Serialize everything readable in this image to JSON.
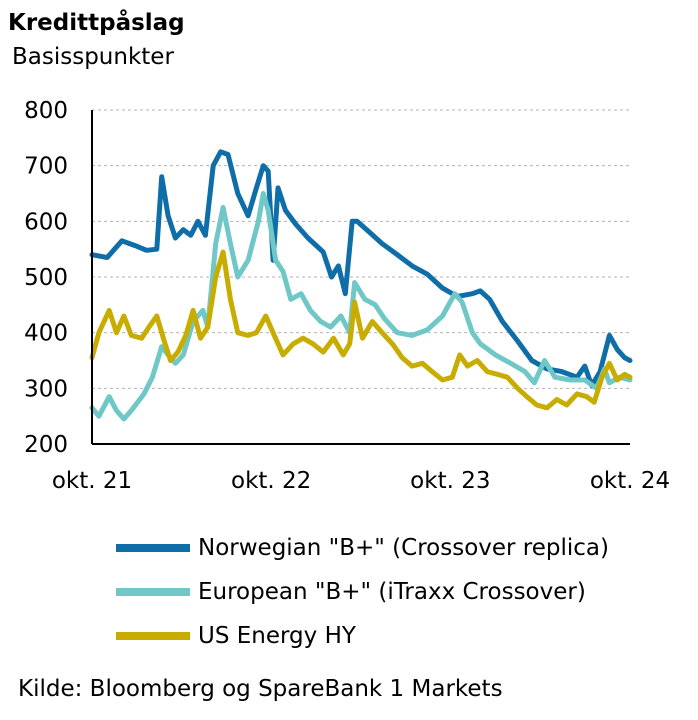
{
  "header": {
    "title": "Kredittpåslag",
    "subtitle": "Basisspunkter"
  },
  "source": "Kilde: Bloomberg og SpareBank 1 Markets",
  "colors": {
    "norwegian": "#0f6ea8",
    "european": "#6fc7c7",
    "us_energy": "#c8ad00",
    "grid": "#b3b3b3",
    "axis": "#000000"
  },
  "chart_data": {
    "type": "line",
    "title": "Kredittpåslag",
    "subtitle": "Basisspunkter",
    "xlabel": "",
    "ylabel": "Basisspunkter",
    "ylim": [
      200,
      800
    ],
    "yticks": [
      "200",
      "300",
      "400",
      "500",
      "600",
      "700",
      "800"
    ],
    "xticks": [
      "okt. 21",
      "okt. 22",
      "okt. 23",
      "okt. 24"
    ],
    "grid": "horizontal dashed",
    "legend_position": "bottom",
    "series": [
      {
        "name": "Norwegian \"B+\" (Crossover replica)",
        "color": "#0f6ea8",
        "points": [
          [
            "2021-10-01",
            540
          ],
          [
            "2021-11-01",
            535
          ],
          [
            "2021-12-01",
            565
          ],
          [
            "2022-01-01",
            555
          ],
          [
            "2022-01-20",
            548
          ],
          [
            "2022-02-10",
            550
          ],
          [
            "2022-02-20",
            680
          ],
          [
            "2022-03-05",
            610
          ],
          [
            "2022-03-20",
            570
          ],
          [
            "2022-04-05",
            585
          ],
          [
            "2022-04-20",
            575
          ],
          [
            "2022-05-05",
            600
          ],
          [
            "2022-05-20",
            575
          ],
          [
            "2022-06-05",
            700
          ],
          [
            "2022-06-20",
            725
          ],
          [
            "2022-07-05",
            720
          ],
          [
            "2022-07-25",
            650
          ],
          [
            "2022-08-15",
            610
          ],
          [
            "2022-09-01",
            660
          ],
          [
            "2022-09-15",
            700
          ],
          [
            "2022-09-25",
            690
          ],
          [
            "2022-10-05",
            530
          ],
          [
            "2022-10-15",
            660
          ],
          [
            "2022-10-30",
            620
          ],
          [
            "2022-11-20",
            595
          ],
          [
            "2022-12-15",
            570
          ],
          [
            "2023-01-15",
            545
          ],
          [
            "2023-02-01",
            500
          ],
          [
            "2023-02-15",
            520
          ],
          [
            "2023-03-01",
            470
          ],
          [
            "2023-03-15",
            600
          ],
          [
            "2023-03-25",
            600
          ],
          [
            "2023-04-20",
            580
          ],
          [
            "2023-05-15",
            560
          ],
          [
            "2023-06-15",
            540
          ],
          [
            "2023-07-15",
            520
          ],
          [
            "2023-08-15",
            505
          ],
          [
            "2023-09-15",
            480
          ],
          [
            "2023-10-15",
            465
          ],
          [
            "2023-11-15",
            470
          ],
          [
            "2023-12-01",
            475
          ],
          [
            "2023-12-20",
            460
          ],
          [
            "2024-01-15",
            420
          ],
          [
            "2024-02-15",
            385
          ],
          [
            "2024-03-15",
            350
          ],
          [
            "2024-04-15",
            335
          ],
          [
            "2024-05-15",
            330
          ],
          [
            "2024-06-15",
            320
          ],
          [
            "2024-07-01",
            340
          ],
          [
            "2024-07-15",
            305
          ],
          [
            "2024-08-01",
            330
          ],
          [
            "2024-08-20",
            395
          ],
          [
            "2024-09-05",
            370
          ],
          [
            "2024-09-20",
            355
          ],
          [
            "2024-10-01",
            350
          ]
        ]
      },
      {
        "name": "European \"B+\" (iTraxx Crossover)",
        "color": "#6fc7c7",
        "points": [
          [
            "2021-10-01",
            265
          ],
          [
            "2021-10-15",
            250
          ],
          [
            "2021-11-05",
            285
          ],
          [
            "2021-11-20",
            260
          ],
          [
            "2021-12-05",
            245
          ],
          [
            "2021-12-20",
            260
          ],
          [
            "2022-01-15",
            290
          ],
          [
            "2022-02-01",
            320
          ],
          [
            "2022-02-20",
            375
          ],
          [
            "2022-03-05",
            360
          ],
          [
            "2022-03-20",
            345
          ],
          [
            "2022-04-05",
            360
          ],
          [
            "2022-04-25",
            420
          ],
          [
            "2022-05-15",
            440
          ],
          [
            "2022-05-25",
            410
          ],
          [
            "2022-06-10",
            560
          ],
          [
            "2022-06-25",
            625
          ],
          [
            "2022-07-10",
            560
          ],
          [
            "2022-07-25",
            500
          ],
          [
            "2022-08-15",
            530
          ],
          [
            "2022-09-05",
            600
          ],
          [
            "2022-09-15",
            650
          ],
          [
            "2022-09-25",
            620
          ],
          [
            "2022-10-10",
            530
          ],
          [
            "2022-10-25",
            510
          ],
          [
            "2022-11-10",
            460
          ],
          [
            "2022-12-01",
            470
          ],
          [
            "2022-12-20",
            440
          ],
          [
            "2023-01-10",
            420
          ],
          [
            "2023-01-30",
            410
          ],
          [
            "2023-02-20",
            430
          ],
          [
            "2023-03-10",
            400
          ],
          [
            "2023-03-20",
            490
          ],
          [
            "2023-04-10",
            460
          ],
          [
            "2023-05-01",
            450
          ],
          [
            "2023-05-20",
            425
          ],
          [
            "2023-06-15",
            400
          ],
          [
            "2023-07-15",
            395
          ],
          [
            "2023-08-15",
            405
          ],
          [
            "2023-09-15",
            430
          ],
          [
            "2023-10-10",
            470
          ],
          [
            "2023-10-25",
            455
          ],
          [
            "2023-11-15",
            400
          ],
          [
            "2023-12-01",
            380
          ],
          [
            "2024-01-01",
            360
          ],
          [
            "2024-02-01",
            345
          ],
          [
            "2024-03-01",
            330
          ],
          [
            "2024-03-20",
            310
          ],
          [
            "2024-04-10",
            350
          ],
          [
            "2024-05-01",
            320
          ],
          [
            "2024-06-01",
            315
          ],
          [
            "2024-07-01",
            315
          ],
          [
            "2024-07-25",
            300
          ],
          [
            "2024-08-10",
            335
          ],
          [
            "2024-08-20",
            310
          ],
          [
            "2024-09-10",
            320
          ],
          [
            "2024-10-01",
            315
          ]
        ]
      },
      {
        "name": "US Energy HY",
        "color": "#c8ad00",
        "points": [
          [
            "2021-10-01",
            355
          ],
          [
            "2021-10-15",
            400
          ],
          [
            "2021-11-05",
            440
          ],
          [
            "2021-11-20",
            400
          ],
          [
            "2021-12-05",
            430
          ],
          [
            "2021-12-20",
            395
          ],
          [
            "2022-01-10",
            390
          ],
          [
            "2022-01-25",
            410
          ],
          [
            "2022-02-10",
            430
          ],
          [
            "2022-02-25",
            385
          ],
          [
            "2022-03-10",
            350
          ],
          [
            "2022-03-25",
            365
          ],
          [
            "2022-04-10",
            395
          ],
          [
            "2022-04-25",
            440
          ],
          [
            "2022-05-10",
            390
          ],
          [
            "2022-05-25",
            410
          ],
          [
            "2022-06-10",
            500
          ],
          [
            "2022-06-25",
            545
          ],
          [
            "2022-07-10",
            460
          ],
          [
            "2022-07-25",
            400
          ],
          [
            "2022-08-15",
            395
          ],
          [
            "2022-09-01",
            400
          ],
          [
            "2022-09-20",
            430
          ],
          [
            "2022-10-05",
            400
          ],
          [
            "2022-10-25",
            360
          ],
          [
            "2022-11-15",
            380
          ],
          [
            "2022-12-05",
            390
          ],
          [
            "2022-12-25",
            380
          ],
          [
            "2023-01-15",
            365
          ],
          [
            "2023-02-05",
            390
          ],
          [
            "2023-02-25",
            360
          ],
          [
            "2023-03-10",
            380
          ],
          [
            "2023-03-20",
            455
          ],
          [
            "2023-04-05",
            390
          ],
          [
            "2023-04-25",
            420
          ],
          [
            "2023-05-15",
            400
          ],
          [
            "2023-06-05",
            380
          ],
          [
            "2023-06-25",
            355
          ],
          [
            "2023-07-15",
            340
          ],
          [
            "2023-08-05",
            345
          ],
          [
            "2023-08-25",
            330
          ],
          [
            "2023-09-15",
            315
          ],
          [
            "2023-10-05",
            320
          ],
          [
            "2023-10-20",
            360
          ],
          [
            "2023-11-05",
            340
          ],
          [
            "2023-11-25",
            350
          ],
          [
            "2023-12-15",
            330
          ],
          [
            "2024-01-05",
            325
          ],
          [
            "2024-01-25",
            320
          ],
          [
            "2024-02-15",
            300
          ],
          [
            "2024-03-05",
            285
          ],
          [
            "2024-03-25",
            270
          ],
          [
            "2024-04-15",
            265
          ],
          [
            "2024-05-05",
            280
          ],
          [
            "2024-05-25",
            270
          ],
          [
            "2024-06-15",
            290
          ],
          [
            "2024-07-05",
            285
          ],
          [
            "2024-07-20",
            275
          ],
          [
            "2024-08-05",
            320
          ],
          [
            "2024-08-20",
            345
          ],
          [
            "2024-09-05",
            315
          ],
          [
            "2024-09-20",
            325
          ],
          [
            "2024-10-01",
            320
          ]
        ]
      }
    ]
  }
}
